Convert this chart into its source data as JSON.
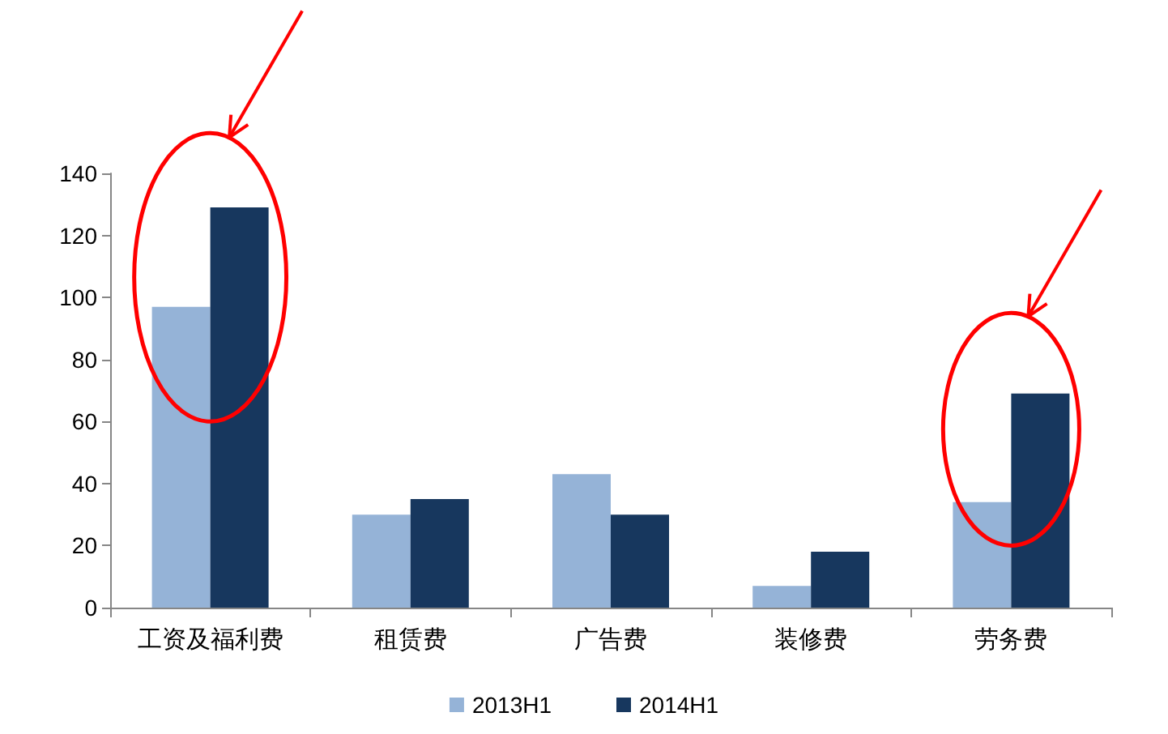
{
  "chart_data": {
    "type": "bar",
    "categories": [
      "工资及福利费",
      "租赁费",
      "广告费",
      "装修费",
      "劳务费"
    ],
    "series": [
      {
        "name": "2013H1",
        "color": "#95b3d7",
        "values": [
          97,
          30,
          43,
          7,
          34
        ]
      },
      {
        "name": "2014H1",
        "color": "#17375e",
        "values": [
          129,
          35,
          30,
          18,
          69
        ]
      }
    ],
    "ylim": [
      0,
      140
    ],
    "yticks": [
      0,
      20,
      40,
      60,
      80,
      100,
      120,
      140
    ],
    "grid": false,
    "legend": "bottom"
  }
}
